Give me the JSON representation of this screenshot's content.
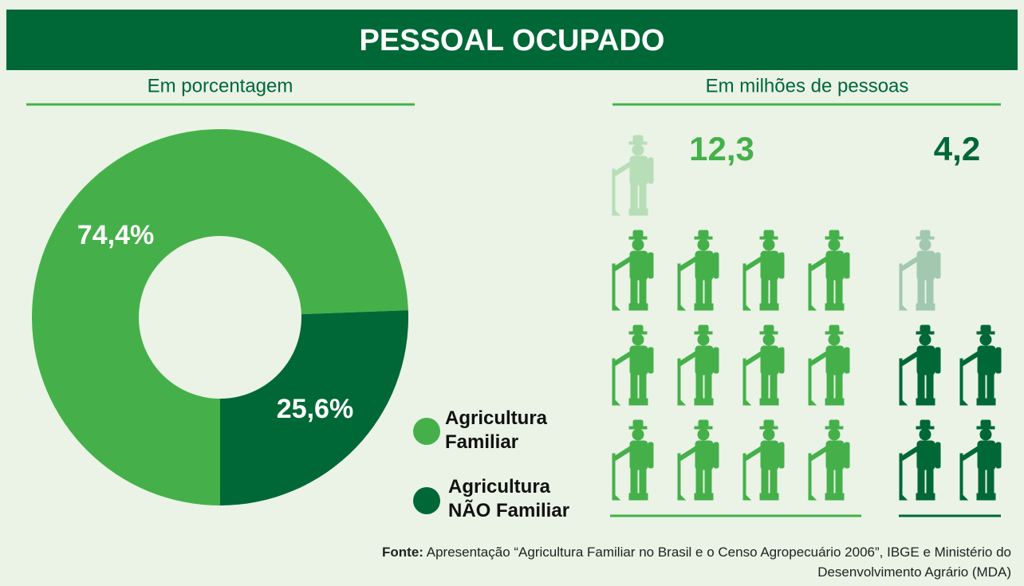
{
  "title": "PESSOAL OCUPADO",
  "source": {
    "label": "Fonte:",
    "text": "Apresentação “Agricultura Familiar no Brasil e o Censo Agropecuário 2006”, IBGE e Ministério do Desenvolvimento Agrário (MDA)"
  },
  "chart_data": [
    {
      "type": "pie",
      "subtitle": "Em porcentagem",
      "categories": [
        "Agricultura Familiar",
        "Agricultura NÃO Familiar"
      ],
      "values": [
        74.4,
        25.6
      ],
      "value_labels": [
        "74,4%",
        "25,6%"
      ],
      "colors": [
        "#45b04a",
        "#006837"
      ],
      "donut": true
    },
    {
      "type": "pictogram",
      "subtitle": "Em milhões de pessoas",
      "values": [
        12.3,
        4.2
      ],
      "value_labels": [
        "12,3",
        "4,2"
      ],
      "colors": [
        "#45b04a",
        "#006837"
      ]
    }
  ]
}
